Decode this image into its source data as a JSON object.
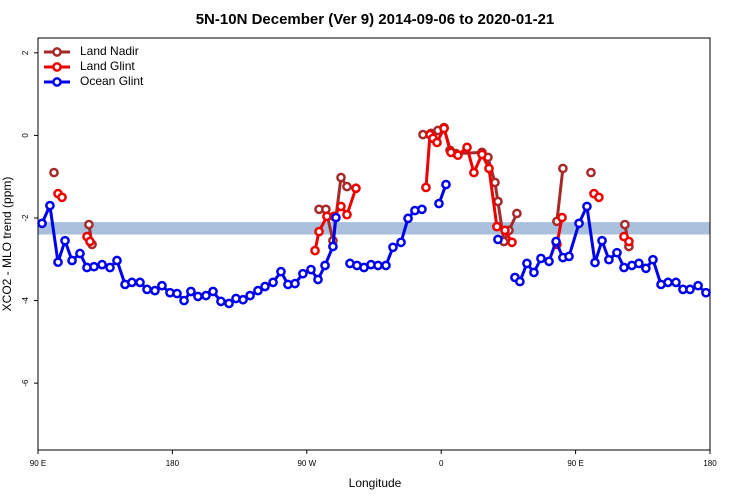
{
  "chart_data": {
    "type": "line",
    "title": "5N-10N December (Ver 9)   2014-09-06 to 2020-01-21",
    "x_label": "Longitude",
    "y_label": "XCO2 - MLO trend (ppm)",
    "xlim": [
      90,
      540
    ],
    "ylim": [
      -7.62,
      2.36
    ],
    "xticks": [
      {
        "value": 90,
        "label": "90 E"
      },
      180,
      {
        "value": 270,
        "label": "90 W"
      },
      {
        "value": 360,
        "label": "0"
      },
      {
        "value": 450,
        "label": "90 E"
      },
      {
        "value": 540,
        "label": "180"
      }
    ],
    "yticks": [
      -6,
      -4,
      -2,
      0,
      2
    ],
    "reference_band": [
      -2.4,
      -2.1
    ],
    "reference_band_color": "#a9c0dc",
    "legend": "top-left",
    "series": [
      {
        "name": "Land Nadir",
        "color": "#a52a2a",
        "x": [
          100.7,
          null,
          124.1,
          126.2,
          null,
          278.2,
          282.8,
          287.5,
          292.9,
          296.9,
          null,
          347.8,
          353.2,
          357.8,
          361.9,
          365.9,
          369.9,
          387.3,
          391.3,
          396.0,
          398.0,
          402.0,
          405.4,
          410.7,
          null,
          437.5,
          441.5,
          null,
          460.3,
          null,
          483.0,
          485.7
        ],
        "values": [
          -0.9,
          null,
          -2.16,
          -2.64,
          null,
          -1.79,
          -1.79,
          -2.55,
          -1.02,
          -1.24,
          null,
          0.02,
          0.05,
          0.12,
          0.19,
          -0.36,
          -0.44,
          -0.41,
          -0.53,
          -1.14,
          -1.6,
          -2.57,
          -2.3,
          -1.89,
          null,
          -2.08,
          -0.8,
          null,
          -0.9,
          null,
          -2.16,
          -2.69
        ]
      },
      {
        "name": "Land Glint",
        "color": "#ee0000",
        "x": [
          103.4,
          106.1,
          null,
          122.8,
          124.8,
          null,
          275.5,
          278.2,
          283.5,
          288.2,
          292.9,
          296.9,
          302.9,
          null,
          349.8,
          352.5,
          354.5,
          357.2,
          361.9,
          366.5,
          371.2,
          377.3,
          381.9,
          387.3,
          392.0,
          397.3,
          402.7,
          407.4,
          null,
          437.5,
          440.9,
          null,
          462.3,
          465.6,
          null,
          482.4,
          485.7
        ],
        "values": [
          -1.41,
          -1.5,
          null,
          -2.45,
          -2.57,
          null,
          -2.79,
          -2.33,
          -1.96,
          -1.96,
          -1.72,
          -1.92,
          -1.28,
          null,
          -1.26,
          0.02,
          -0.07,
          -0.17,
          0.17,
          -0.41,
          -0.48,
          -0.29,
          -0.9,
          -0.46,
          -0.8,
          -2.21,
          -2.3,
          -2.59,
          null,
          -2.64,
          -1.99,
          null,
          -1.41,
          -1.5,
          null,
          -2.45,
          -2.57
        ]
      },
      {
        "name": "Ocean Glint",
        "color": "#0000ee",
        "x": [
          92.7,
          98.0,
          103.4,
          108.1,
          112.8,
          118.1,
          122.8,
          127.5,
          132.9,
          138.2,
          142.9,
          148.3,
          152.9,
          158.3,
          163.0,
          168.3,
          173.0,
          178.4,
          183.1,
          187.8,
          192.4,
          197.1,
          202.5,
          207.2,
          212.5,
          217.9,
          222.6,
          227.3,
          232.0,
          237.3,
          242.0,
          247.4,
          252.7,
          257.4,
          262.1,
          267.4,
          272.8,
          277.5,
          282.2,
          287.5,
          289.5,
          null,
          298.9,
          303.6,
          308.3,
          313.0,
          317.7,
          323.0,
          327.7,
          333.1,
          337.8,
          342.4,
          347.1,
          null,
          358.5,
          363.2,
          null,
          398.0,
          null,
          409.4,
          412.7,
          417.4,
          422.1,
          426.8,
          432.2,
          436.9,
          441.5,
          445.6,
          452.3,
          457.6,
          463.0,
          467.7,
          472.3,
          477.7,
          482.4,
          487.7,
          492.4,
          497.1,
          501.8,
          507.2,
          511.9,
          517.2,
          521.9,
          526.6,
          532.0,
          537.3
        ],
        "values": [
          -2.13,
          -1.7,
          -3.07,
          -2.55,
          -3.03,
          -2.86,
          -3.2,
          -3.18,
          -3.13,
          -3.2,
          -3.03,
          -3.61,
          -3.56,
          -3.56,
          -3.73,
          -3.76,
          -3.64,
          -3.81,
          -3.83,
          -4.0,
          -3.78,
          -3.9,
          -3.88,
          -3.78,
          -4.02,
          -4.07,
          -3.95,
          -3.98,
          -3.88,
          -3.76,
          -3.66,
          -3.56,
          -3.3,
          -3.61,
          -3.59,
          -3.35,
          -3.25,
          -3.49,
          -3.15,
          -2.69,
          -1.99,
          null,
          -3.1,
          -3.15,
          -3.2,
          -3.13,
          -3.15,
          -3.15,
          -2.71,
          -2.59,
          -2.01,
          -1.82,
          -1.79,
          null,
          -1.65,
          -1.19,
          null,
          -2.52,
          null,
          -3.44,
          -3.54,
          -3.1,
          -3.32,
          -2.98,
          -3.05,
          -2.57,
          -2.96,
          -2.93,
          -2.13,
          -1.72,
          -3.08,
          -2.55,
          -3.01,
          -2.84,
          -3.2,
          -3.15,
          -3.1,
          -3.22,
          -3.01,
          -3.61,
          -3.56,
          -3.56,
          -3.73,
          -3.73,
          -3.64,
          -3.81
        ]
      }
    ]
  }
}
